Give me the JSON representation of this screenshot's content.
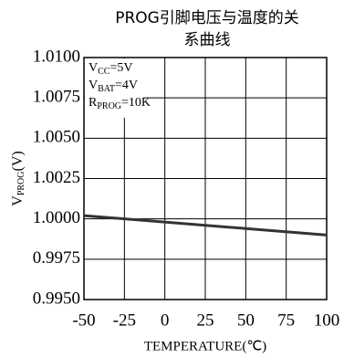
{
  "chart_data": {
    "type": "line",
    "title": [
      "PROG引脚电压与温度的关",
      "系曲线"
    ],
    "x_label": "TEMPERATURE(℃)",
    "y_label": {
      "main": "V",
      "sub": "PROG",
      "rest": "(V)"
    },
    "annotations": [
      {
        "main": "V",
        "sub": "CC",
        "rest": "=5V"
      },
      {
        "main": "V",
        "sub": "BAT",
        "rest": "=4V"
      },
      {
        "main": "R",
        "sub": "PROG",
        "rest": "=10K"
      }
    ],
    "x": [
      -50,
      100
    ],
    "series": [
      {
        "color": "#333333",
        "values": [
          1.0002,
          0.999
        ]
      }
    ],
    "xlim": [
      -50,
      100
    ],
    "xticks": [
      -50,
      -25,
      0,
      25,
      50,
      75,
      100
    ],
    "ylim": [
      0.995,
      1.01
    ],
    "yticks": [
      {
        "value": 0.995,
        "label": "0.9950"
      },
      {
        "value": 0.9975,
        "label": "0.9975"
      },
      {
        "value": 1.0,
        "label": "1.0000"
      },
      {
        "value": 1.0025,
        "label": "1.0025"
      },
      {
        "value": 1.005,
        "label": "1.0050"
      },
      {
        "value": 1.0075,
        "label": "1.0075"
      },
      {
        "value": 1.01,
        "label": "1.0100"
      }
    ],
    "grid": true
  }
}
